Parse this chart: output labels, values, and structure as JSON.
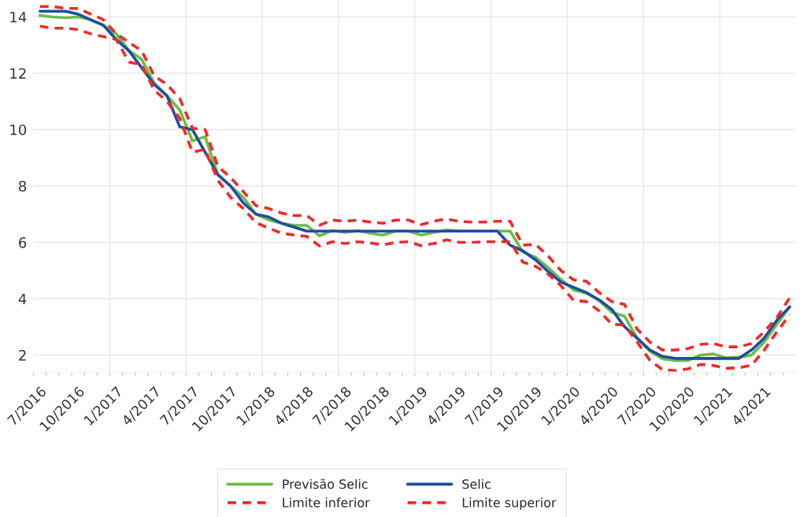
{
  "chart_data": {
    "type": "line",
    "categories": [
      "7/2016",
      null,
      null,
      "10/2016",
      null,
      null,
      "1/2017",
      null,
      null,
      "4/2017",
      null,
      null,
      "7/2017",
      null,
      null,
      "10/2017",
      null,
      null,
      "1/2018",
      null,
      null,
      "4/2018",
      null,
      null,
      "7/2018",
      null,
      null,
      "10/2018",
      null,
      null,
      "1/2019",
      null,
      null,
      "4/2019",
      null,
      null,
      "7/2019",
      null,
      null,
      "10/2019",
      null,
      null,
      "1/2020",
      null,
      null,
      "4/2020",
      null,
      null,
      "7/2020",
      null,
      null,
      "10/2020",
      null,
      null,
      "1/2021",
      null,
      null,
      "4/2021",
      null,
      null
    ],
    "series": [
      {
        "name": "Previsão Selic",
        "color": "#6abf45",
        "line_style": "solid",
        "values": [
          14.05,
          14.0,
          13.97,
          14.0,
          13.9,
          13.7,
          13.4,
          12.8,
          12.5,
          11.65,
          11.2,
          10.7,
          9.6,
          9.75,
          8.4,
          8.0,
          7.6,
          7.0,
          6.8,
          6.68,
          6.6,
          6.6,
          6.23,
          6.42,
          6.35,
          6.41,
          6.32,
          6.26,
          6.4,
          6.4,
          6.26,
          6.35,
          6.44,
          6.4,
          6.4,
          6.4,
          6.4,
          6.4,
          5.66,
          5.47,
          5.1,
          4.68,
          4.31,
          4.2,
          3.94,
          3.52,
          3.38,
          2.6,
          2.14,
          1.86,
          1.81,
          1.81,
          2.0,
          2.04,
          1.9,
          1.92,
          2.0,
          2.46,
          3.1,
          3.71
        ]
      },
      {
        "name": "Selic",
        "color": "#1f4e9f",
        "line_style": "solid",
        "values": [
          14.2,
          14.2,
          14.2,
          14.1,
          13.9,
          13.7,
          13.2,
          12.8,
          12.2,
          11.6,
          11.2,
          10.1,
          10.0,
          9.2,
          8.4,
          8.0,
          7.4,
          7.0,
          6.9,
          6.68,
          6.54,
          6.4,
          6.4,
          6.4,
          6.4,
          6.4,
          6.4,
          6.4,
          6.4,
          6.4,
          6.4,
          6.4,
          6.4,
          6.4,
          6.4,
          6.4,
          6.4,
          5.9,
          5.7,
          5.38,
          4.96,
          4.59,
          4.4,
          4.22,
          3.96,
          3.62,
          3.01,
          2.6,
          2.18,
          1.95,
          1.88,
          1.88,
          1.88,
          1.88,
          1.88,
          1.88,
          2.18,
          2.6,
          3.24,
          3.71
        ]
      },
      {
        "name": "Limite inferior",
        "color": "#ee2a2a",
        "line_style": "dashed",
        "values": [
          13.67,
          13.6,
          13.6,
          13.55,
          13.4,
          13.3,
          13.2,
          12.4,
          12.3,
          11.4,
          11.0,
          10.4,
          9.2,
          9.3,
          8.2,
          7.6,
          7.2,
          6.7,
          6.5,
          6.33,
          6.26,
          6.21,
          5.87,
          6.02,
          5.96,
          6.02,
          5.98,
          5.91,
          6.0,
          6.02,
          5.88,
          5.96,
          6.09,
          6.0,
          6.0,
          6.02,
          6.02,
          6.02,
          5.3,
          5.15,
          4.87,
          4.46,
          3.94,
          3.9,
          3.57,
          3.1,
          3.06,
          2.46,
          1.81,
          1.48,
          1.45,
          1.51,
          1.67,
          1.63,
          1.53,
          1.55,
          1.64,
          2.18,
          2.83,
          3.43
        ]
      },
      {
        "name": "Limite superior",
        "color": "#ee2a2a",
        "line_style": "dashed",
        "values": [
          14.37,
          14.37,
          14.3,
          14.3,
          14.1,
          13.9,
          13.4,
          13.1,
          12.8,
          11.9,
          11.6,
          11.1,
          10.05,
          10.0,
          8.7,
          8.3,
          7.8,
          7.3,
          7.2,
          7.04,
          6.95,
          6.95,
          6.61,
          6.79,
          6.75,
          6.79,
          6.72,
          6.68,
          6.79,
          6.79,
          6.63,
          6.75,
          6.83,
          6.74,
          6.72,
          6.72,
          6.75,
          6.75,
          5.9,
          5.93,
          5.51,
          5.0,
          4.67,
          4.62,
          4.22,
          3.9,
          3.8,
          2.92,
          2.46,
          2.18,
          2.18,
          2.23,
          2.38,
          2.41,
          2.29,
          2.29,
          2.41,
          2.83,
          3.34,
          4.03
        ]
      }
    ],
    "ylim": [
      1.4,
      14.6
    ],
    "yticks": [
      2,
      4,
      6,
      8,
      10,
      12,
      14
    ],
    "grid": true,
    "legend": "bottom"
  }
}
